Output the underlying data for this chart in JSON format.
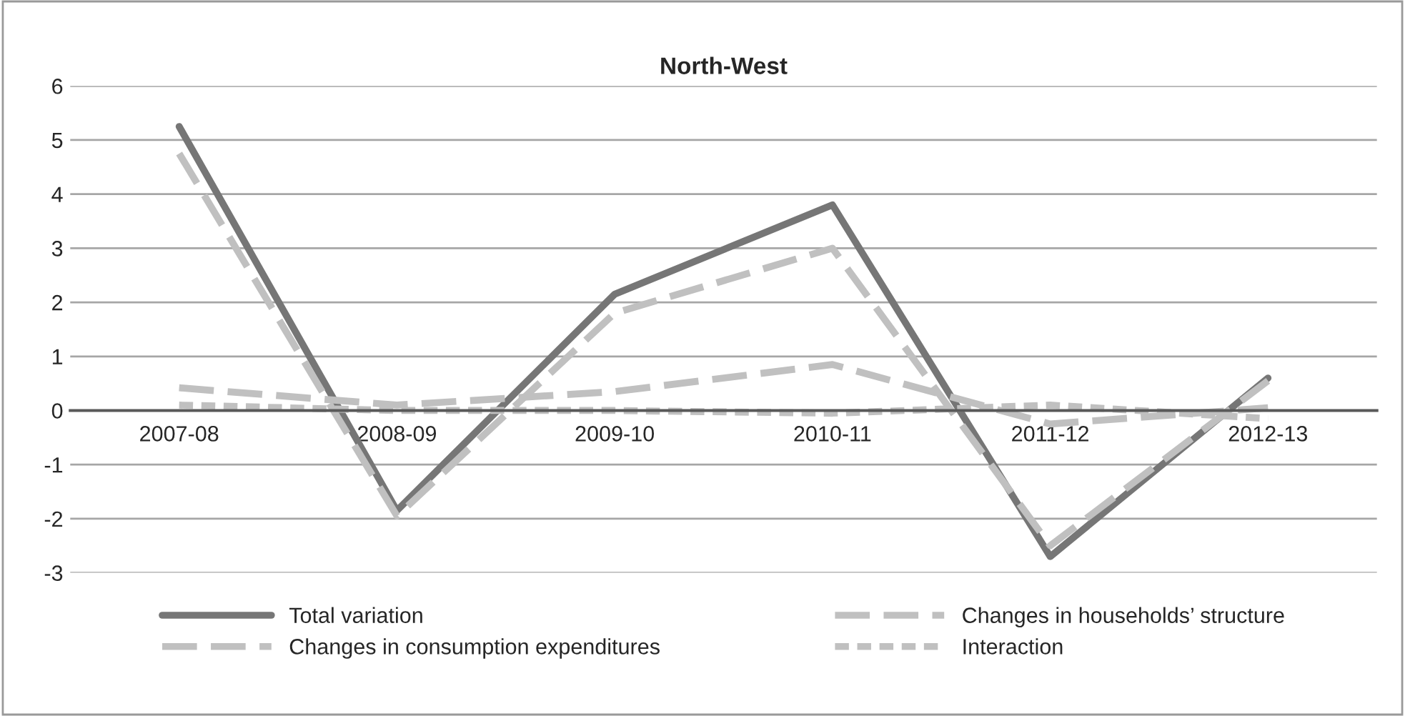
{
  "chart_data": {
    "type": "line",
    "title": "North-West",
    "categories": [
      "2007-08",
      "2008-09",
      "2009-10",
      "2010-11",
      "2011-12",
      "2012-13"
    ],
    "series": [
      {
        "name": "Total variation",
        "color": "#767676",
        "line_style": "solid",
        "values": [
          5.25,
          -1.85,
          2.15,
          3.8,
          -2.7,
          0.6
        ]
      },
      {
        "name": "Changes in consumption expenditures",
        "color": "#c0c0c0",
        "line_style": "dashed",
        "values": [
          4.75,
          -1.95,
          1.8,
          3.0,
          -2.5,
          0.55
        ]
      },
      {
        "name": "Changes in households’ structure",
        "color": "#c0c0c0",
        "line_style": "dashed",
        "values": [
          0.42,
          0.1,
          0.35,
          0.85,
          -0.25,
          0.05
        ]
      },
      {
        "name": "Interaction",
        "color": "#c0c0c0",
        "line_style": "dotted",
        "values": [
          0.1,
          0.0,
          0.0,
          -0.05,
          0.1,
          -0.15
        ]
      }
    ],
    "ylim": [
      -3,
      6
    ],
    "yticks": [
      -3,
      -2,
      -1,
      0,
      1,
      2,
      3,
      4,
      5,
      6
    ],
    "grid": "y",
    "legend": "bottom",
    "marker": "none"
  }
}
